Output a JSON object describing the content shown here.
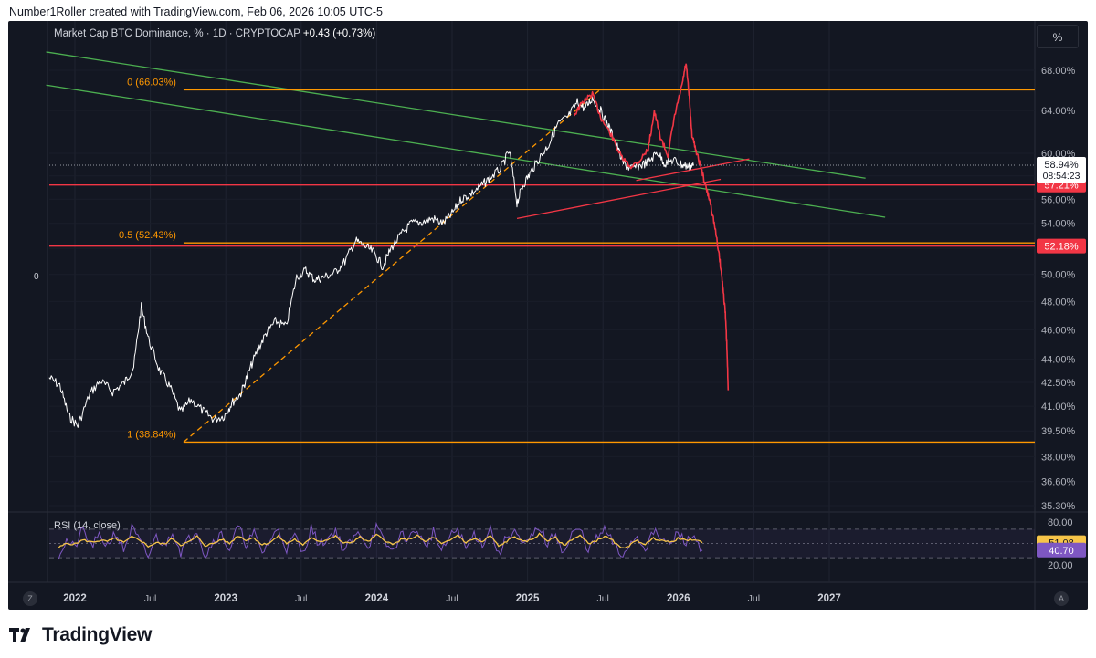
{
  "header": {
    "attribution": "Number1Roller created with TradingView.com, Feb 06, 2026 10:05 UTC-5"
  },
  "footer": {
    "brand": "TradingView"
  },
  "chart": {
    "legend_title": "Market Cap BTC Dominance, % · 1D · CRYPTOCAP",
    "legend_change": "+0.43 (+0.73%)",
    "scale_button": "%",
    "left_axis_label": "0",
    "corner_left": "Z",
    "corner_right": "A",
    "rsi_label": "RSI (14, close)"
  },
  "colors": {
    "background": "#131722",
    "price": "#ffffff",
    "projection": "#f23645",
    "fib": "#ff9800",
    "trend_green": "#4caf50",
    "hline_red": "#f23645",
    "rsi": "#7e57c2",
    "rsi_ma": "#f7c548"
  },
  "chart_data": [
    {
      "type": "line",
      "title": "Market Cap BTC Dominance, % · 1D · CRYPTOCAP",
      "y_scale": "log",
      "ylim": [
        35.0,
        70.0
      ],
      "y_ticks": [
        "68.00%",
        "64.00%",
        "60.00%",
        "58.00%",
        "56.00%",
        "54.00%",
        "52.00%",
        "50.00%",
        "48.00%",
        "46.00%",
        "44.00%",
        "42.50%",
        "41.00%",
        "39.50%",
        "38.00%",
        "36.60%",
        "35.30%"
      ],
      "y_tick_values": [
        68.0,
        64.0,
        60.0,
        58.0,
        56.0,
        54.0,
        52.0,
        50.0,
        48.0,
        46.0,
        44.0,
        42.5,
        41.0,
        39.5,
        38.0,
        36.6,
        35.3
      ],
      "x_range": [
        2021.8,
        2027.5
      ],
      "x_ticks": [
        {
          "label": "2022",
          "t": 2022.0
        },
        {
          "label": "Jul",
          "t": 2022.5
        },
        {
          "label": "2023",
          "t": 2023.0
        },
        {
          "label": "Jul",
          "t": 2023.5
        },
        {
          "label": "2024",
          "t": 2024.0
        },
        {
          "label": "Jul",
          "t": 2024.5
        },
        {
          "label": "2025",
          "t": 2025.0
        },
        {
          "label": "Jul",
          "t": 2025.5
        },
        {
          "label": "2026",
          "t": 2026.0
        },
        {
          "label": "Jul",
          "t": 2026.5
        },
        {
          "label": "2027",
          "t": 2027.0
        }
      ],
      "series": [
        {
          "name": "BTC Dominance (historical)",
          "points": [
            [
              2021.83,
              42.8
            ],
            [
              2021.9,
              42.3
            ],
            [
              2021.96,
              40.4
            ],
            [
              2022.02,
              39.8
            ],
            [
              2022.1,
              41.8
            ],
            [
              2022.17,
              42.6
            ],
            [
              2022.25,
              41.9
            ],
            [
              2022.33,
              42.5
            ],
            [
              2022.39,
              43.5
            ],
            [
              2022.44,
              47.6
            ],
            [
              2022.49,
              45.3
            ],
            [
              2022.56,
              43.3
            ],
            [
              2022.63,
              42.2
            ],
            [
              2022.7,
              40.6
            ],
            [
              2022.77,
              41.4
            ],
            [
              2022.85,
              40.7
            ],
            [
              2022.92,
              40.2
            ],
            [
              2022.99,
              40.4
            ],
            [
              2023.04,
              41.2
            ],
            [
              2023.1,
              41.8
            ],
            [
              2023.15,
              43.1
            ],
            [
              2023.21,
              44.6
            ],
            [
              2023.27,
              45.8
            ],
            [
              2023.33,
              46.6
            ],
            [
              2023.4,
              46.2
            ],
            [
              2023.47,
              49.8
            ],
            [
              2023.53,
              50.3
            ],
            [
              2023.59,
              49.6
            ],
            [
              2023.65,
              49.8
            ],
            [
              2023.72,
              50.1
            ],
            [
              2023.79,
              51.0
            ],
            [
              2023.86,
              52.6
            ],
            [
              2023.92,
              52.2
            ],
            [
              2023.98,
              51.7
            ],
            [
              2024.04,
              50.6
            ],
            [
              2024.1,
              52.1
            ],
            [
              2024.17,
              53.2
            ],
            [
              2024.23,
              54.0
            ],
            [
              2024.3,
              54.1
            ],
            [
              2024.37,
              54.4
            ],
            [
              2024.44,
              54.0
            ],
            [
              2024.5,
              54.8
            ],
            [
              2024.56,
              56.0
            ],
            [
              2024.62,
              56.4
            ],
            [
              2024.69,
              57.1
            ],
            [
              2024.75,
              57.8
            ],
            [
              2024.82,
              58.6
            ],
            [
              2024.88,
              60.2
            ],
            [
              2024.93,
              55.7
            ],
            [
              2024.97,
              57.2
            ],
            [
              2025.02,
              58.3
            ],
            [
              2025.08,
              59.6
            ],
            [
              2025.14,
              60.8
            ],
            [
              2025.2,
              62.7
            ],
            [
              2025.27,
              63.4
            ],
            [
              2025.33,
              64.8
            ],
            [
              2025.38,
              64.2
            ],
            [
              2025.43,
              65.2
            ],
            [
              2025.48,
              64.1
            ],
            [
              2025.53,
              62.7
            ],
            [
              2025.58,
              61.2
            ],
            [
              2025.63,
              59.2
            ],
            [
              2025.68,
              58.6
            ],
            [
              2025.74,
              58.9
            ],
            [
              2025.8,
              59.2
            ],
            [
              2025.86,
              60.1
            ],
            [
              2025.91,
              59.1
            ],
            [
              2025.97,
              59.4
            ],
            [
              2026.02,
              59.0
            ],
            [
              2026.07,
              58.8
            ],
            [
              2026.1,
              58.9
            ]
          ]
        },
        {
          "name": "Projection (drawn)",
          "points": [
            [
              2025.31,
              63.6
            ],
            [
              2025.37,
              64.9
            ],
            [
              2025.43,
              65.6
            ],
            [
              2025.49,
              63.2
            ],
            [
              2025.55,
              61.8
            ],
            [
              2025.62,
              59.7
            ],
            [
              2025.68,
              58.8
            ],
            [
              2025.74,
              59.3
            ],
            [
              2025.8,
              60.4
            ],
            [
              2025.84,
              63.9
            ],
            [
              2025.88,
              61.5
            ],
            [
              2025.93,
              59.8
            ],
            [
              2025.98,
              63.8
            ],
            [
              2026.02,
              66.2
            ],
            [
              2026.05,
              68.7
            ],
            [
              2026.07,
              65.6
            ],
            [
              2026.09,
              61.7
            ],
            [
              2026.12,
              60.1
            ],
            [
              2026.15,
              58.7
            ],
            [
              2026.18,
              57.1
            ],
            [
              2026.21,
              55.8
            ],
            [
              2026.24,
              53.8
            ],
            [
              2026.27,
              51.5
            ],
            [
              2026.29,
              49.6
            ],
            [
              2026.31,
              47.3
            ],
            [
              2026.32,
              45.1
            ],
            [
              2026.33,
              42.0
            ]
          ]
        }
      ],
      "annotations": {
        "fib_levels": [
          {
            "label": "0 (66.03%)",
            "value": 66.03
          },
          {
            "label": "0.5 (52.43%)",
            "value": 52.43
          },
          {
            "label": "1 (38.84%)",
            "value": 38.84
          }
        ],
        "fib_anchor_line": {
          "from": [
            2022.72,
            38.84
          ],
          "to": [
            2025.48,
            66.03
          ]
        },
        "horizontal_lines": [
          {
            "value": 57.21,
            "label": "57.21%"
          },
          {
            "value": 52.18,
            "label": "52.18%"
          }
        ],
        "last_price": {
          "value": 58.94,
          "label": "58.94%",
          "countdown": "08:54:23"
        },
        "trend_lines_green": [
          {
            "from": [
              2021.81,
              69.9
            ],
            "to": [
              2027.24,
              57.8
            ]
          },
          {
            "from": [
              2021.81,
              66.5
            ],
            "to": [
              2027.37,
              54.5
            ]
          }
        ],
        "wedge_lines_red": [
          {
            "from": [
              2024.93,
              54.4
            ],
            "to": [
              2026.28,
              57.7
            ]
          },
          {
            "from": [
              2025.72,
              57.6
            ],
            "to": [
              2026.47,
              59.5
            ]
          }
        ]
      }
    },
    {
      "type": "line",
      "title": "RSI (14, close)",
      "ylim": [
        20,
        90
      ],
      "y_ticks": [
        "80.00",
        "20.00"
      ],
      "levels": [
        70,
        50,
        30
      ],
      "last_values": {
        "rsi": "40.70",
        "rsi_ma": "51.08"
      },
      "series": [
        {
          "name": "RSI",
          "values": [
            34.0,
            54.0,
            44.0,
            70.0,
            46.0,
            59.0,
            48.0,
            66.0,
            41.0,
            72.0,
            52.0,
            31.0,
            60.0,
            46.0,
            68.0,
            38.0,
            56.0,
            70.0,
            32.0,
            54.0,
            63.0,
            41.0,
            74.0,
            50.0,
            64.0,
            37.0,
            55.0,
            70.0,
            43.0,
            61.0,
            35.0,
            72.0,
            48.0,
            57.0,
            69.0,
            40.0,
            54.0,
            66.0,
            45.0,
            73.0,
            51.0,
            39.0,
            62.0,
            57.0,
            70.0,
            44.0,
            67.0,
            38.0,
            59.0,
            71.0,
            42.0,
            64.0,
            49.0,
            72.0,
            33.0,
            60.0,
            68.0,
            45.0,
            58.0,
            74.0,
            48.0,
            65.0,
            35.0,
            63.0,
            70.0,
            41.0,
            56.0,
            69.0,
            52.0,
            31.0,
            48.0,
            60.0,
            43.0,
            66.0,
            57.0,
            47.0,
            65.0,
            52.0,
            61.0,
            40.7
          ]
        },
        {
          "name": "RSI-based MA",
          "values": [
            44.0,
            50.0,
            49.0,
            55.0,
            52.0,
            54.0,
            53.0,
            57.0,
            51.0,
            59.0,
            55.0,
            46.0,
            51.0,
            49.0,
            57.0,
            48.0,
            52.0,
            60.0,
            47.0,
            50.0,
            56.0,
            50.0,
            61.0,
            55.0,
            58.0,
            48.0,
            52.0,
            60.0,
            50.0,
            56.0,
            47.0,
            59.0,
            53.0,
            55.0,
            60.0,
            50.0,
            52.0,
            59.0,
            52.0,
            62.0,
            55.0,
            48.0,
            55.0,
            56.0,
            61.0,
            52.0,
            59.0,
            49.0,
            54.0,
            62.0,
            51.0,
            57.0,
            52.0,
            61.0,
            46.0,
            53.0,
            60.0,
            52.0,
            55.0,
            63.0,
            54.0,
            58.0,
            47.0,
            56.0,
            61.0,
            50.0,
            54.0,
            60.0,
            54.0,
            43.0,
            47.0,
            54.0,
            49.0,
            57.0,
            55.0,
            51.0,
            57.0,
            54.0,
            56.0,
            51.08
          ]
        }
      ]
    }
  ]
}
